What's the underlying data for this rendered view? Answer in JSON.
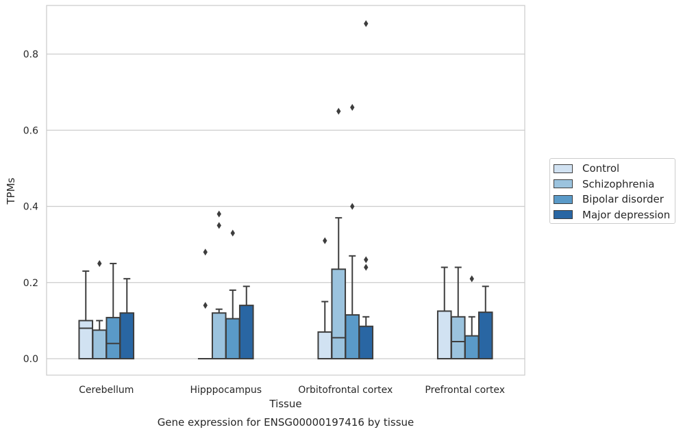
{
  "chart_data": {
    "type": "box",
    "xlabel": "Tissue",
    "ylabel": "TPMs",
    "caption": "Gene expression for ENSG00000197416 by tissue",
    "ylim": [
      -0.042,
      0.93
    ],
    "yticks": [
      0.0,
      0.2,
      0.4,
      0.6,
      0.8
    ],
    "ytick_labels": [
      "0.0",
      "0.2",
      "0.4",
      "0.6",
      "0.8"
    ],
    "grid": true,
    "legend_position": "right",
    "categories": [
      "Cerebellum",
      "Hipppocampus",
      "Orbitofrontal cortex",
      "Prefrontal cortex"
    ],
    "series": [
      {
        "name": "Control",
        "color": "#d1e2f2",
        "boxes": [
          {
            "q1": 0.0,
            "median": 0.08,
            "q3": 0.1,
            "whislo": 0.0,
            "whishi": 0.23,
            "fliers": []
          },
          {
            "q1": 0.0,
            "median": 0.0,
            "q3": 0.0,
            "whislo": 0.0,
            "whishi": 0.0,
            "fliers": [
              0.14,
              0.28
            ]
          },
          {
            "q1": 0.0,
            "median": 0.0,
            "q3": 0.07,
            "whislo": 0.0,
            "whishi": 0.15,
            "fliers": [
              0.31
            ]
          },
          {
            "q1": 0.0,
            "median": 0.0,
            "q3": 0.125,
            "whislo": 0.0,
            "whishi": 0.24,
            "fliers": []
          }
        ]
      },
      {
        "name": "Schizophrenia",
        "color": "#9bc3de",
        "boxes": [
          {
            "q1": 0.0,
            "median": 0.0,
            "q3": 0.075,
            "whislo": 0.0,
            "whishi": 0.1,
            "fliers": [
              0.25
            ]
          },
          {
            "q1": 0.0,
            "median": 0.0,
            "q3": 0.12,
            "whislo": 0.0,
            "whishi": 0.13,
            "fliers": [
              0.35,
              0.38
            ]
          },
          {
            "q1": 0.0,
            "median": 0.055,
            "q3": 0.235,
            "whislo": 0.0,
            "whishi": 0.37,
            "fliers": [
              0.65
            ]
          },
          {
            "q1": 0.0,
            "median": 0.045,
            "q3": 0.11,
            "whislo": 0.0,
            "whishi": 0.24,
            "fliers": []
          }
        ]
      },
      {
        "name": "Bipolar disorder",
        "color": "#5a9ac8",
        "boxes": [
          {
            "q1": 0.0,
            "median": 0.04,
            "q3": 0.108,
            "whislo": 0.0,
            "whishi": 0.25,
            "fliers": []
          },
          {
            "q1": 0.0,
            "median": 0.0,
            "q3": 0.105,
            "whislo": 0.0,
            "whishi": 0.18,
            "fliers": [
              0.33
            ]
          },
          {
            "q1": 0.0,
            "median": 0.0,
            "q3": 0.115,
            "whislo": 0.0,
            "whishi": 0.27,
            "fliers": [
              0.4,
              0.66
            ]
          },
          {
            "q1": 0.0,
            "median": 0.0,
            "q3": 0.06,
            "whislo": 0.0,
            "whishi": 0.11,
            "fliers": [
              0.21
            ]
          }
        ]
      },
      {
        "name": "Major depression",
        "color": "#2966a3",
        "boxes": [
          {
            "q1": 0.0,
            "median": 0.0,
            "q3": 0.12,
            "whislo": 0.0,
            "whishi": 0.21,
            "fliers": []
          },
          {
            "q1": 0.0,
            "median": 0.0,
            "q3": 0.14,
            "whislo": 0.0,
            "whishi": 0.19,
            "fliers": []
          },
          {
            "q1": 0.0,
            "median": 0.0,
            "q3": 0.085,
            "whislo": 0.0,
            "whishi": 0.11,
            "fliers": [
              0.24,
              0.26,
              0.88
            ]
          },
          {
            "q1": 0.0,
            "median": 0.0,
            "q3": 0.122,
            "whislo": 0.0,
            "whishi": 0.19,
            "fliers": []
          }
        ]
      }
    ]
  }
}
